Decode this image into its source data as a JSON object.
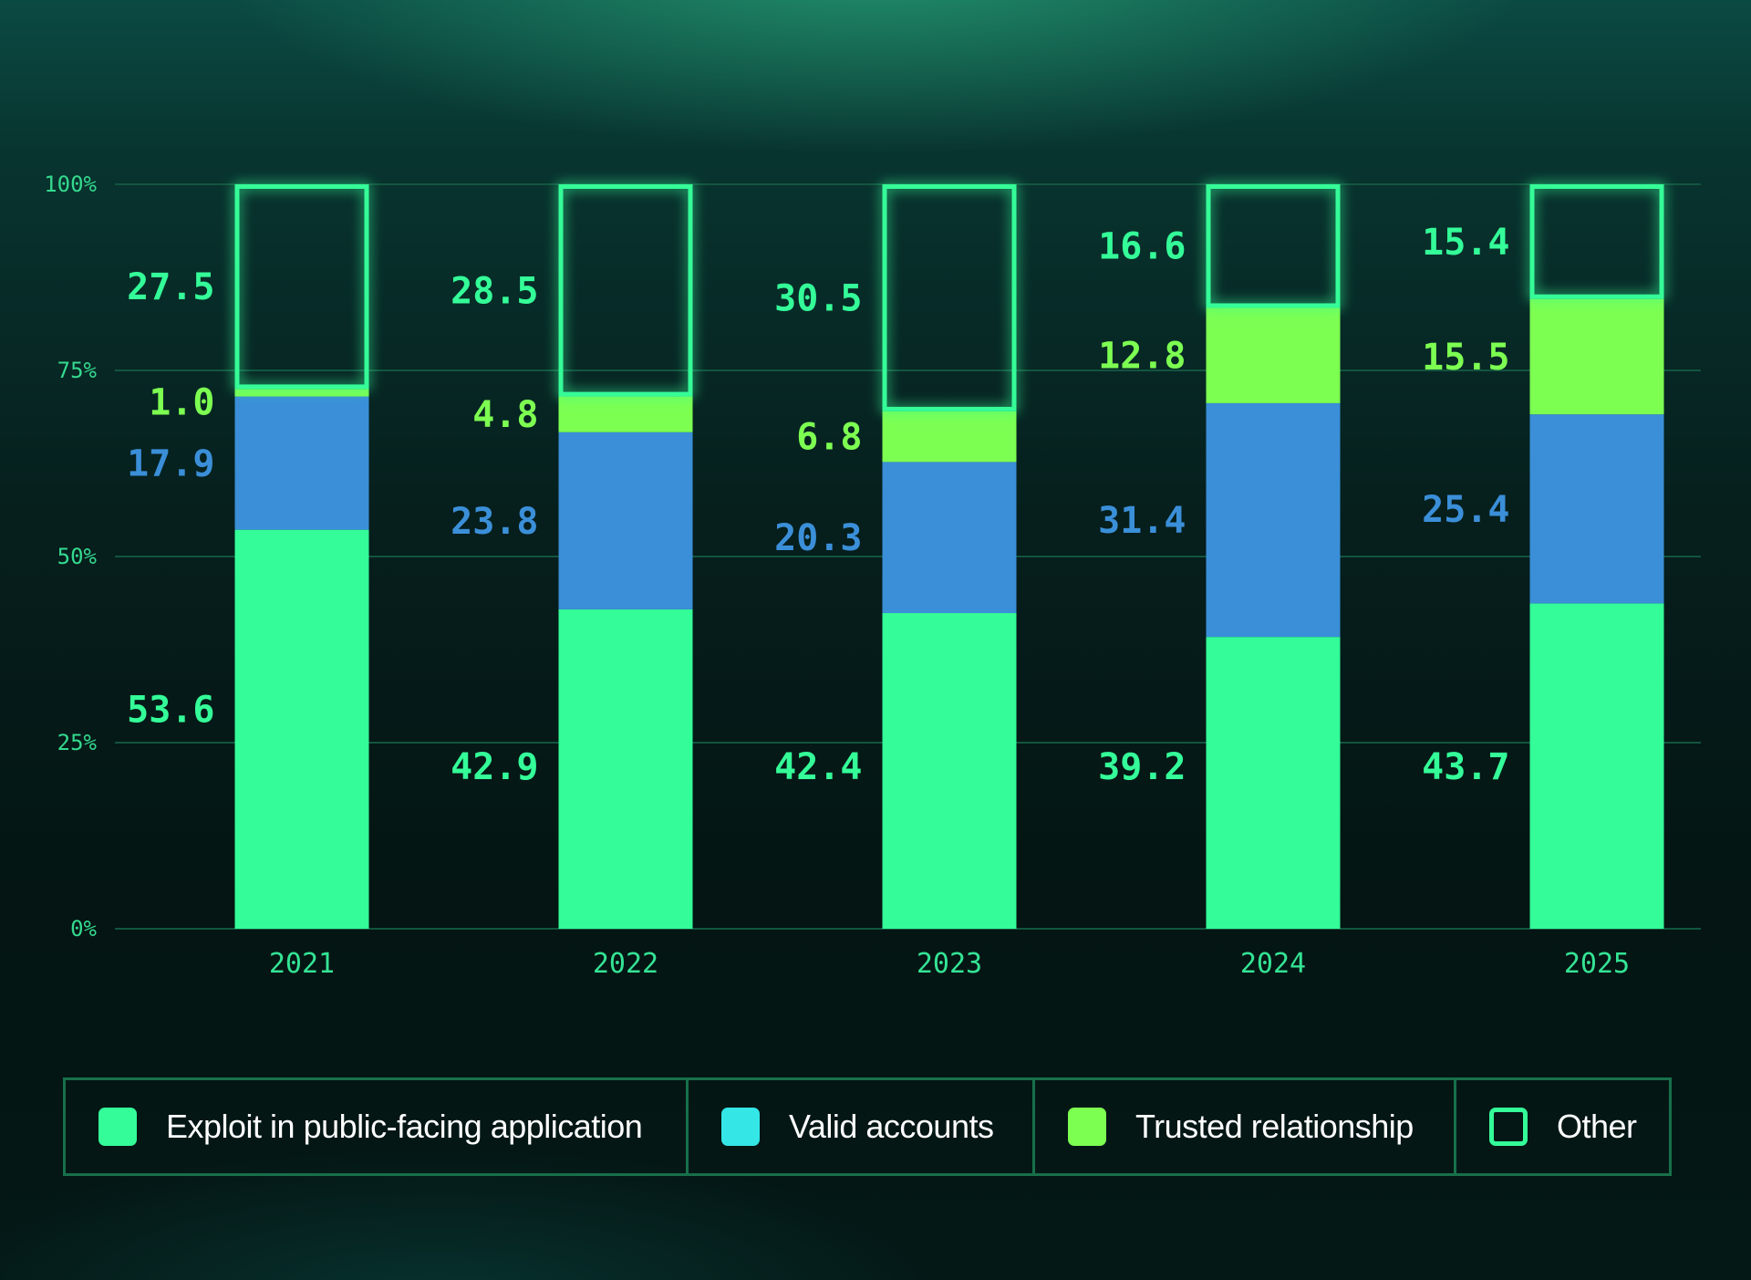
{
  "chart_data": {
    "type": "bar",
    "stacked": true,
    "title": "",
    "xlabel": "",
    "ylabel": "",
    "ylim": [
      0,
      100
    ],
    "yticks": [
      "0%",
      "25%",
      "50%",
      "75%",
      "100%"
    ],
    "ytick_values": [
      0,
      25,
      50,
      75,
      100
    ],
    "grid": true,
    "categories": [
      "2021",
      "2022",
      "2023",
      "2024",
      "2025"
    ],
    "series": [
      {
        "name": "Exploit in public-facing application",
        "color": "#34fc98",
        "label_color": "#34fc98",
        "style": "filled",
        "values": [
          53.6,
          42.9,
          42.4,
          39.2,
          43.7
        ],
        "labels": [
          "53.6",
          "42.9",
          "42.4",
          "39.2",
          "43.7"
        ]
      },
      {
        "name": "Valid accounts",
        "color": "#3b8fd8",
        "label_color": "#3b8fd8",
        "legend_color": "#35e6e6",
        "style": "filled",
        "values": [
          17.9,
          23.8,
          20.3,
          31.4,
          25.4
        ],
        "labels": [
          "17.9",
          "23.8",
          "20.3",
          "31.4",
          "25.4"
        ]
      },
      {
        "name": "Trusted relationship",
        "color": "#7dff52",
        "label_color": "#7dff52",
        "style": "filled",
        "values": [
          1.0,
          4.8,
          6.8,
          12.8,
          15.5
        ],
        "labels": [
          "1.0",
          "4.8",
          "6.8",
          "12.8",
          "15.5"
        ]
      },
      {
        "name": "Other",
        "color": "#34fc98",
        "label_color": "#34fc98",
        "style": "outline",
        "values": [
          27.5,
          28.5,
          30.5,
          16.6,
          15.4
        ],
        "labels": [
          "27.5",
          "28.5",
          "30.5",
          "16.6",
          "15.4"
        ]
      }
    ],
    "legend_position": "bottom"
  },
  "legend": {
    "items": [
      {
        "label": "Exploit in public-facing application",
        "color": "#34fc98",
        "style": "filled"
      },
      {
        "label": "Valid accounts",
        "color": "#35e6e6",
        "style": "filled"
      },
      {
        "label": "Trusted relationship",
        "color": "#7dff52",
        "style": "filled"
      },
      {
        "label": "Other",
        "color": "#34fc98",
        "style": "outline"
      }
    ]
  },
  "colors": {
    "gridline": "#12553f",
    "tick_text": "#34e394",
    "legend_border": "#17704a"
  }
}
